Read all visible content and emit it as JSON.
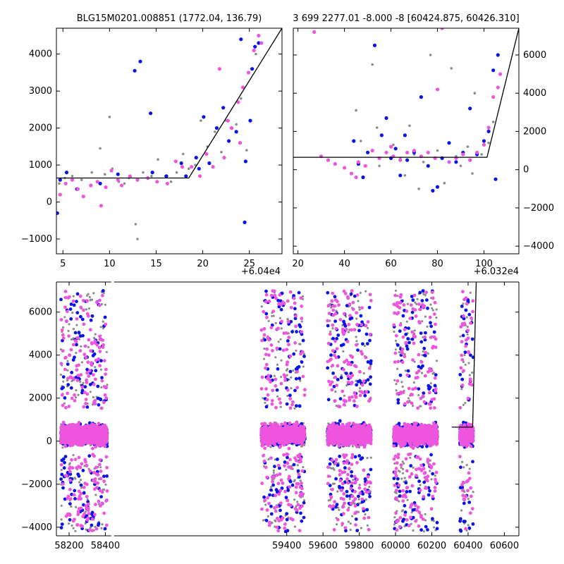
{
  "colors": {
    "background": "#ffffff",
    "axes": "#000000",
    "fit_line": "#000000",
    "series_grey": "#8c8c8c",
    "series_blue": "#0a14e6",
    "series_magenta": "#ee55dd"
  },
  "chart_data": [
    {
      "type": "scatter",
      "title": "BLG15M0201.008851 (1772.04, 136.79)",
      "xlabel": "",
      "ylabel": "",
      "x_offset_label": "+6.04e4",
      "xlim": [
        4.3,
        28.5
      ],
      "ylim": [
        -1400,
        4700
      ],
      "x_ticks": [
        5,
        10,
        15,
        20,
        25
      ],
      "x_tick_labels": [
        "5",
        "10",
        "15",
        "20",
        "25"
      ],
      "y_ticks": [
        -1000,
        0,
        1000,
        2000,
        3000,
        4000
      ],
      "y_tick_labels": [
        "−1000",
        "0",
        "1000",
        "2000",
        "3000",
        "4000"
      ],
      "y_axis_side": "left",
      "fit_line": {
        "x": [
          4.3,
          18.5,
          28.5
        ],
        "y": [
          650,
          650,
          4700
        ]
      },
      "series": [
        {
          "color_key": "series_grey",
          "points": [
            [
              4.6,
              500
            ],
            [
              5.2,
              650
            ],
            [
              6.0,
              700
            ],
            [
              7.0,
              600
            ],
            [
              8.1,
              800
            ],
            [
              9.0,
              1450
            ],
            [
              9.5,
              750
            ],
            [
              10.3,
              900
            ],
            [
              11.0,
              550
            ],
            [
              12.1,
              650
            ],
            [
              12.8,
              -600
            ],
            [
              13.0,
              -1000
            ],
            [
              13.6,
              800
            ],
            [
              14.5,
              700
            ],
            [
              15.2,
              1150
            ],
            [
              16.0,
              700
            ],
            [
              16.6,
              550
            ],
            [
              17.2,
              800
            ],
            [
              17.9,
              1300
            ],
            [
              18.5,
              900
            ],
            [
              19.2,
              1000
            ],
            [
              19.8,
              2200
            ],
            [
              20.5,
              1500
            ],
            [
              21.3,
              1900
            ],
            [
              22.0,
              1350
            ],
            [
              22.5,
              2200
            ],
            [
              23.0,
              2000
            ],
            [
              23.6,
              2100
            ],
            [
              24.1,
              2800
            ],
            [
              24.7,
              1400
            ],
            [
              25.2,
              3600
            ],
            [
              25.7,
              4000
            ],
            [
              10.0,
              2300
            ],
            [
              11.6,
              500
            ]
          ]
        },
        {
          "color_key": "series_blue",
          "points": [
            [
              4.4,
              -300
            ],
            [
              4.7,
              600
            ],
            [
              5.4,
              800
            ],
            [
              6.5,
              350
            ],
            [
              9.0,
              500
            ],
            [
              12.7,
              3550
            ],
            [
              13.3,
              3800
            ],
            [
              14.4,
              2400
            ],
            [
              14.6,
              800
            ],
            [
              16.1,
              700
            ],
            [
              17.7,
              1050
            ],
            [
              18.2,
              700
            ],
            [
              19.6,
              900
            ],
            [
              20.1,
              2300
            ],
            [
              20.7,
              1050
            ],
            [
              21.5,
              2000
            ],
            [
              22.2,
              2550
            ],
            [
              22.8,
              1650
            ],
            [
              23.6,
              1900
            ],
            [
              24.1,
              4400
            ],
            [
              24.6,
              1100
            ],
            [
              24.5,
              -550
            ],
            [
              25.3,
              3600
            ],
            [
              25.6,
              4200
            ],
            [
              26.0,
              4300
            ],
            [
              25.1,
              2200
            ],
            [
              19.3,
              1200
            ],
            [
              10.9,
              750
            ]
          ]
        },
        {
          "color_key": "series_magenta",
          "points": [
            [
              4.7,
              200
            ],
            [
              5.3,
              500
            ],
            [
              6.0,
              600
            ],
            [
              6.6,
              350
            ],
            [
              7.2,
              150
            ],
            [
              8.0,
              450
            ],
            [
              8.7,
              550
            ],
            [
              9.1,
              -100
            ],
            [
              9.6,
              400
            ],
            [
              10.2,
              850
            ],
            [
              10.9,
              600
            ],
            [
              11.3,
              450
            ],
            [
              12.2,
              700
            ],
            [
              13.0,
              600
            ],
            [
              14.1,
              650
            ],
            [
              15.1,
              550
            ],
            [
              16.2,
              500
            ],
            [
              17.1,
              1100
            ],
            [
              17.8,
              950
            ],
            [
              18.8,
              950
            ],
            [
              19.7,
              700
            ],
            [
              20.4,
              1300
            ],
            [
              21.1,
              950
            ],
            [
              21.8,
              3600
            ],
            [
              22.3,
              1200
            ],
            [
              23.1,
              2000
            ],
            [
              23.8,
              2700
            ],
            [
              24.3,
              3100
            ],
            [
              24.9,
              3500
            ],
            [
              25.5,
              4100
            ],
            [
              26.0,
              4500
            ],
            [
              26.3,
              4300
            ],
            [
              24.0,
              1600
            ],
            [
              22.7,
              2200
            ]
          ]
        }
      ]
    },
    {
      "type": "scatter",
      "title": "3 699 2277.01 -8.000 -8 [60424.875, 60426.310]",
      "xlabel": "",
      "ylabel": "",
      "x_offset_label": "+6.032e4",
      "xlim": [
        18,
        115
      ],
      "ylim": [
        -4400,
        7400
      ],
      "x_ticks": [
        20,
        40,
        60,
        80,
        100
      ],
      "x_tick_labels": [
        "20",
        "40",
        "60",
        "80",
        "100"
      ],
      "y_ticks": [
        -4000,
        -2000,
        0,
        2000,
        4000,
        6000
      ],
      "y_tick_labels": [
        "−4000",
        "−2000",
        "0",
        "2000",
        "4000",
        "6000"
      ],
      "y_axis_side": "right",
      "fit_line": {
        "x": [
          18,
          101.3,
          115
        ],
        "y": [
          650,
          650,
          7400
        ]
      },
      "series": [
        {
          "color_key": "series_grey",
          "points": [
            [
              47,
              1500
            ],
            [
              52,
              5500
            ],
            [
              55,
              200
            ],
            [
              58,
              900
            ],
            [
              61,
              1300
            ],
            [
              64,
              600
            ],
            [
              66,
              -300
            ],
            [
              70,
              800
            ],
            [
              74,
              400
            ],
            [
              77,
              6000
            ],
            [
              80,
              1000
            ],
            [
              83,
              -700
            ],
            [
              86,
              5300
            ],
            [
              90,
              200
            ],
            [
              93,
              1200
            ],
            [
              96,
              4000
            ],
            [
              99,
              800
            ],
            [
              102,
              1400
            ],
            [
              104,
              2500
            ],
            [
              45,
              3100
            ],
            [
              54,
              2200
            ],
            [
              68,
              2300
            ],
            [
              72,
              -1000
            ],
            [
              88,
              700
            ],
            [
              95,
              -200
            ]
          ]
        },
        {
          "color_key": "series_blue",
          "points": [
            [
              44,
              1500
            ],
            [
              46,
              300
            ],
            [
              48,
              -400
            ],
            [
              50,
              900
            ],
            [
              53,
              6500
            ],
            [
              56,
              1800
            ],
            [
              58,
              2700
            ],
            [
              60,
              600
            ],
            [
              62,
              1100
            ],
            [
              64,
              -300
            ],
            [
              67,
              500
            ],
            [
              70,
              900
            ],
            [
              73,
              3800
            ],
            [
              76,
              200
            ],
            [
              80,
              -900
            ],
            [
              82,
              600
            ],
            [
              85,
              1400
            ],
            [
              88,
              400
            ],
            [
              91,
              900
            ],
            [
              94,
              3200
            ],
            [
              97,
              800
            ],
            [
              100,
              1500
            ],
            [
              102,
              2000
            ],
            [
              104,
              5200
            ],
            [
              106,
              6000
            ],
            [
              105,
              -500
            ],
            [
              78,
              -1100
            ],
            [
              66,
              1800
            ]
          ]
        },
        {
          "color_key": "series_magenta",
          "points": [
            [
              27,
              7200
            ],
            [
              30,
              700
            ],
            [
              33,
              500
            ],
            [
              36,
              300
            ],
            [
              40,
              100
            ],
            [
              43,
              -200
            ],
            [
              46,
              400
            ],
            [
              49,
              200
            ],
            [
              52,
              1000
            ],
            [
              55,
              600
            ],
            [
              58,
              900
            ],
            [
              61,
              700
            ],
            [
              64,
              500
            ],
            [
              67,
              900
            ],
            [
              70,
              1000
            ],
            [
              73,
              700
            ],
            [
              76,
              900
            ],
            [
              79,
              600
            ],
            [
              82,
              7400
            ],
            [
              85,
              400
            ],
            [
              88,
              600
            ],
            [
              91,
              800
            ],
            [
              94,
              500
            ],
            [
              97,
              900
            ],
            [
              100,
              1300
            ],
            [
              102,
              2200
            ],
            [
              104,
              3800
            ],
            [
              106,
              4300
            ],
            [
              107,
              5000
            ],
            [
              80,
              4200
            ],
            [
              60,
              1200
            ],
            [
              45,
              -400
            ]
          ]
        }
      ]
    },
    {
      "type": "scatter",
      "title": "",
      "xlabel": "",
      "ylabel": "",
      "x_offset_label": "",
      "xlim": [
        58130,
        60680
      ],
      "ylim": [
        -4400,
        7400
      ],
      "x_ticks": [
        58200,
        58400,
        59400,
        59600,
        59800,
        60000,
        60200,
        60400,
        60600
      ],
      "x_tick_labels": [
        "58200",
        "58400",
        "59400",
        "59600",
        "59800",
        "60000",
        "60200",
        "60400",
        "60600"
      ],
      "y_ticks": [
        -4000,
        -2000,
        0,
        2000,
        4000,
        6000
      ],
      "y_tick_labels": [
        "−4000",
        "−2000",
        "0",
        "2000",
        "4000",
        "6000"
      ],
      "y_axis_side": "left",
      "axis_break_x": 58440,
      "fit_line": {
        "x": [
          60310,
          60424.9,
          60445
        ],
        "y": [
          650,
          650,
          7400
        ]
      },
      "seasons": [
        {
          "start": 58155,
          "end": 58410
        },
        {
          "start": 59260,
          "end": 59500
        },
        {
          "start": 59625,
          "end": 59865
        },
        {
          "start": 59990,
          "end": 60230
        },
        {
          "start": 60355,
          "end": 60428
        }
      ]
    }
  ]
}
